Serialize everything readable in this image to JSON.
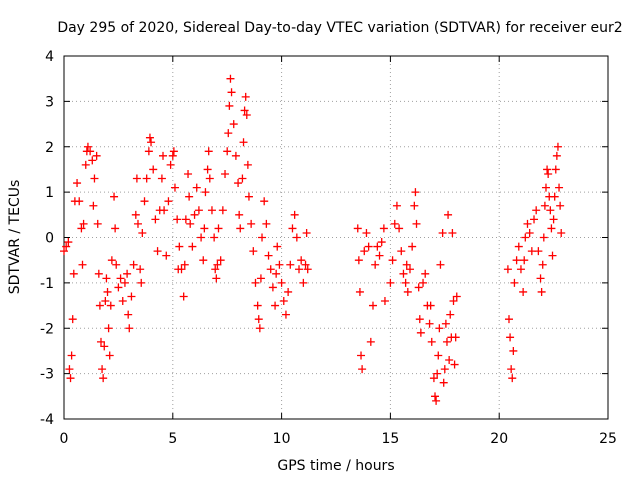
{
  "chart_data": {
    "type": "scatter",
    "title": "Day 295 of 2020, Sidereal Day-to-day VTEC variation (SDTVAR) for receiver eur2",
    "xlabel": "GPS time / hours",
    "ylabel": "SDTVAR / TECUs",
    "xlim": [
      0,
      25
    ],
    "ylim": [
      -4,
      4
    ],
    "x_ticks": [
      0,
      5,
      10,
      15,
      20,
      25
    ],
    "y_ticks": [
      -4,
      -3,
      -2,
      -1,
      0,
      1,
      2,
      3,
      4
    ],
    "x_tick_labels": [
      "0",
      "5",
      "10",
      "15",
      "20",
      "25"
    ],
    "y_tick_labels": [
      "-4",
      "-3",
      "-2",
      "-1",
      "0",
      "1",
      "2",
      "3",
      "4"
    ],
    "grid": true,
    "marker": "+",
    "color": "#ff0000",
    "series": [
      {
        "name": "eur2",
        "points": [
          [
            0.0,
            -0.3
          ],
          [
            0.1,
            -0.2
          ],
          [
            0.2,
            -0.1
          ],
          [
            0.25,
            -2.9
          ],
          [
            0.3,
            -3.1
          ],
          [
            0.35,
            -2.6
          ],
          [
            0.4,
            -1.8
          ],
          [
            0.45,
            -0.8
          ],
          [
            0.5,
            0.8
          ],
          [
            0.6,
            1.2
          ],
          [
            0.7,
            0.8
          ],
          [
            0.8,
            0.2
          ],
          [
            0.85,
            -0.6
          ],
          [
            0.9,
            0.3
          ],
          [
            1.0,
            1.6
          ],
          [
            1.05,
            1.9
          ],
          [
            1.1,
            2.0
          ],
          [
            1.2,
            1.9
          ],
          [
            1.3,
            1.7
          ],
          [
            1.35,
            0.7
          ],
          [
            1.4,
            1.3
          ],
          [
            1.5,
            1.8
          ],
          [
            1.55,
            0.3
          ],
          [
            1.6,
            -0.8
          ],
          [
            1.65,
            -1.5
          ],
          [
            1.7,
            -2.3
          ],
          [
            1.75,
            -2.9
          ],
          [
            1.8,
            -3.1
          ],
          [
            1.85,
            -2.4
          ],
          [
            1.9,
            -1.4
          ],
          [
            1.95,
            -0.9
          ],
          [
            2.0,
            -1.2
          ],
          [
            2.05,
            -2.0
          ],
          [
            2.1,
            -2.6
          ],
          [
            2.15,
            -1.5
          ],
          [
            2.2,
            -0.5
          ],
          [
            2.3,
            0.9
          ],
          [
            2.35,
            0.2
          ],
          [
            2.4,
            -0.6
          ],
          [
            2.5,
            -1.1
          ],
          [
            2.6,
            -0.9
          ],
          [
            2.7,
            -1.4
          ],
          [
            2.8,
            -1.0
          ],
          [
            2.9,
            -0.8
          ],
          [
            2.95,
            -1.7
          ],
          [
            3.0,
            -2.0
          ],
          [
            3.1,
            -1.3
          ],
          [
            3.2,
            -0.6
          ],
          [
            3.3,
            0.5
          ],
          [
            3.35,
            1.3
          ],
          [
            3.4,
            0.3
          ],
          [
            3.5,
            -0.7
          ],
          [
            3.55,
            -1.0
          ],
          [
            3.6,
            0.1
          ],
          [
            3.7,
            0.8
          ],
          [
            3.8,
            1.3
          ],
          [
            3.9,
            1.9
          ],
          [
            3.95,
            2.2
          ],
          [
            4.0,
            2.1
          ],
          [
            4.1,
            1.5
          ],
          [
            4.2,
            0.4
          ],
          [
            4.3,
            -0.3
          ],
          [
            4.4,
            0.6
          ],
          [
            4.5,
            1.3
          ],
          [
            4.55,
            1.8
          ],
          [
            4.6,
            0.6
          ],
          [
            4.7,
            -0.4
          ],
          [
            4.8,
            0.8
          ],
          [
            4.9,
            1.6
          ],
          [
            5.0,
            1.8
          ],
          [
            5.05,
            1.9
          ],
          [
            5.1,
            1.1
          ],
          [
            5.2,
            0.4
          ],
          [
            5.25,
            -0.7
          ],
          [
            5.3,
            -0.2
          ],
          [
            5.4,
            -0.7
          ],
          [
            5.5,
            -1.3
          ],
          [
            5.55,
            -0.6
          ],
          [
            5.6,
            0.4
          ],
          [
            5.7,
            1.4
          ],
          [
            5.75,
            0.9
          ],
          [
            5.8,
            0.3
          ],
          [
            5.9,
            -0.2
          ],
          [
            6.0,
            0.5
          ],
          [
            6.1,
            1.1
          ],
          [
            6.2,
            0.6
          ],
          [
            6.3,
            0.0
          ],
          [
            6.4,
            -0.5
          ],
          [
            6.45,
            0.2
          ],
          [
            6.5,
            1.0
          ],
          [
            6.6,
            1.5
          ],
          [
            6.65,
            1.9
          ],
          [
            6.7,
            1.3
          ],
          [
            6.8,
            0.6
          ],
          [
            6.9,
            0.0
          ],
          [
            6.95,
            -0.7
          ],
          [
            7.0,
            -0.9
          ],
          [
            7.05,
            -0.6
          ],
          [
            7.1,
            0.2
          ],
          [
            7.2,
            -0.5
          ],
          [
            7.3,
            0.6
          ],
          [
            7.4,
            1.4
          ],
          [
            7.5,
            1.9
          ],
          [
            7.55,
            2.3
          ],
          [
            7.6,
            2.9
          ],
          [
            7.65,
            3.5
          ],
          [
            7.7,
            3.2
          ],
          [
            7.8,
            2.5
          ],
          [
            7.9,
            1.8
          ],
          [
            8.0,
            1.2
          ],
          [
            8.05,
            0.5
          ],
          [
            8.1,
            0.2
          ],
          [
            8.2,
            1.3
          ],
          [
            8.25,
            2.1
          ],
          [
            8.3,
            2.8
          ],
          [
            8.35,
            3.1
          ],
          [
            8.4,
            2.7
          ],
          [
            8.45,
            1.6
          ],
          [
            8.5,
            0.9
          ],
          [
            8.6,
            0.3
          ],
          [
            8.7,
            -0.3
          ],
          [
            8.8,
            -1.0
          ],
          [
            8.9,
            -1.5
          ],
          [
            8.95,
            -1.8
          ],
          [
            9.0,
            -2.0
          ],
          [
            9.05,
            -0.9
          ],
          [
            9.1,
            0.0
          ],
          [
            9.2,
            0.8
          ],
          [
            9.3,
            0.3
          ],
          [
            9.4,
            -0.4
          ],
          [
            9.5,
            -0.7
          ],
          [
            9.6,
            -1.1
          ],
          [
            9.7,
            -1.5
          ],
          [
            9.75,
            -0.8
          ],
          [
            9.8,
            -0.2
          ],
          [
            9.9,
            -0.6
          ],
          [
            10.0,
            -1.0
          ],
          [
            10.1,
            -1.4
          ],
          [
            10.2,
            -1.7
          ],
          [
            10.3,
            -1.2
          ],
          [
            10.4,
            -0.6
          ],
          [
            10.5,
            0.2
          ],
          [
            10.6,
            0.5
          ],
          [
            10.7,
            0.0
          ],
          [
            10.8,
            -0.7
          ],
          [
            10.9,
            -0.5
          ],
          [
            11.0,
            -1.0
          ],
          [
            11.1,
            -0.6
          ],
          [
            11.2,
            -0.7
          ],
          [
            11.15,
            0.1
          ],
          [
            13.5,
            0.2
          ],
          [
            13.55,
            -0.5
          ],
          [
            13.6,
            -1.2
          ],
          [
            13.65,
            -2.6
          ],
          [
            13.7,
            -2.9
          ],
          [
            13.8,
            -0.3
          ],
          [
            13.9,
            0.1
          ],
          [
            14.0,
            -0.2
          ],
          [
            14.1,
            -2.3
          ],
          [
            14.2,
            -1.5
          ],
          [
            14.3,
            -0.6
          ],
          [
            14.4,
            -0.2
          ],
          [
            14.5,
            -0.4
          ],
          [
            14.6,
            -0.1
          ],
          [
            14.7,
            0.2
          ],
          [
            14.75,
            -1.4
          ],
          [
            15.0,
            -1.0
          ],
          [
            15.1,
            -0.5
          ],
          [
            15.2,
            0.3
          ],
          [
            15.3,
            0.7
          ],
          [
            15.4,
            0.2
          ],
          [
            15.5,
            -0.3
          ],
          [
            15.6,
            -0.8
          ],
          [
            15.7,
            -1.0
          ],
          [
            15.75,
            -0.6
          ],
          [
            15.8,
            -1.2
          ],
          [
            15.9,
            -0.7
          ],
          [
            16.0,
            -0.2
          ],
          [
            16.1,
            0.7
          ],
          [
            16.15,
            1.0
          ],
          [
            16.2,
            0.3
          ],
          [
            16.3,
            -1.1
          ],
          [
            16.35,
            -1.8
          ],
          [
            16.4,
            -2.1
          ],
          [
            16.5,
            -1.0
          ],
          [
            16.6,
            -0.8
          ],
          [
            16.7,
            -1.5
          ],
          [
            16.8,
            -1.9
          ],
          [
            16.85,
            -1.5
          ],
          [
            16.9,
            -2.3
          ],
          [
            17.0,
            -3.1
          ],
          [
            17.05,
            -3.5
          ],
          [
            17.1,
            -3.6
          ],
          [
            17.15,
            -3.0
          ],
          [
            17.2,
            -2.6
          ],
          [
            17.25,
            -2.0
          ],
          [
            17.3,
            -0.6
          ],
          [
            17.4,
            0.1
          ],
          [
            17.45,
            -3.2
          ],
          [
            17.5,
            -2.9
          ],
          [
            17.55,
            -1.9
          ],
          [
            17.6,
            -2.3
          ],
          [
            17.65,
            0.5
          ],
          [
            17.7,
            -2.7
          ],
          [
            17.75,
            -1.7
          ],
          [
            17.8,
            -2.2
          ],
          [
            17.85,
            0.1
          ],
          [
            17.9,
            -1.4
          ],
          [
            17.95,
            -2.8
          ],
          [
            18.0,
            -2.2
          ],
          [
            18.05,
            -1.3
          ],
          [
            20.4,
            -0.7
          ],
          [
            20.45,
            -1.8
          ],
          [
            20.5,
            -2.2
          ],
          [
            20.55,
            -2.9
          ],
          [
            20.6,
            -3.1
          ],
          [
            20.65,
            -2.5
          ],
          [
            20.7,
            -1.0
          ],
          [
            20.8,
            -0.5
          ],
          [
            20.9,
            -0.2
          ],
          [
            21.0,
            -0.7
          ],
          [
            21.1,
            -1.2
          ],
          [
            21.15,
            -0.5
          ],
          [
            21.2,
            0.0
          ],
          [
            21.3,
            0.3
          ],
          [
            21.4,
            0.1
          ],
          [
            21.5,
            -0.3
          ],
          [
            21.6,
            0.4
          ],
          [
            21.7,
            0.6
          ],
          [
            21.8,
            -0.3
          ],
          [
            21.9,
            -0.9
          ],
          [
            21.95,
            -1.2
          ],
          [
            22.0,
            -0.6
          ],
          [
            22.05,
            0.0
          ],
          [
            22.1,
            0.7
          ],
          [
            22.15,
            1.1
          ],
          [
            22.2,
            1.5
          ],
          [
            22.25,
            1.4
          ],
          [
            22.3,
            0.9
          ],
          [
            22.35,
            0.6
          ],
          [
            22.4,
            0.2
          ],
          [
            22.45,
            -0.4
          ],
          [
            22.5,
            0.4
          ],
          [
            22.55,
            0.9
          ],
          [
            22.6,
            1.5
          ],
          [
            22.65,
            1.8
          ],
          [
            22.7,
            2.0
          ],
          [
            22.75,
            1.1
          ],
          [
            22.8,
            0.7
          ],
          [
            22.85,
            0.1
          ]
        ]
      }
    ]
  }
}
